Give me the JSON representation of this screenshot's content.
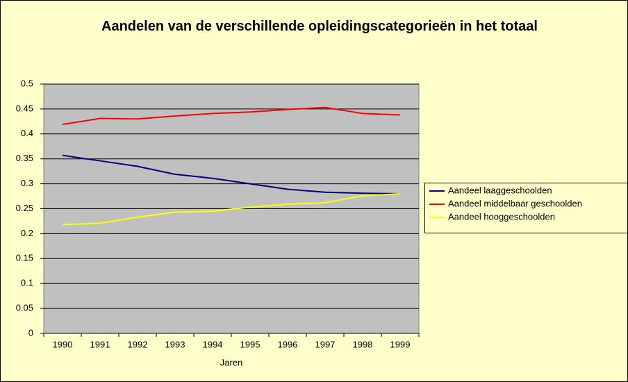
{
  "chart_data": {
    "type": "line",
    "title": "Aandelen van de verschillende opleidingscategorieën in het totaal",
    "x_label": "Jaren",
    "categories": [
      "1990",
      "1991",
      "1992",
      "1993",
      "1994",
      "1995",
      "1996",
      "1997",
      "1998",
      "1999"
    ],
    "series": [
      {
        "name": "Aandeel laaggeschoolden",
        "color": "#000080",
        "values": [
          0.357,
          0.346,
          0.335,
          0.319,
          0.311,
          0.3,
          0.289,
          0.283,
          0.281,
          0.28
        ]
      },
      {
        "name": "Aandeel middelbaar geschoolden",
        "color": "#ff0000",
        "values": [
          0.419,
          0.431,
          0.43,
          0.436,
          0.441,
          0.444,
          0.449,
          0.453,
          0.441,
          0.438
        ]
      },
      {
        "name": "Aandeel hooggeschoolden",
        "color": "#ffff00",
        "values": [
          0.218,
          0.221,
          0.233,
          0.243,
          0.245,
          0.253,
          0.259,
          0.262,
          0.276,
          0.28
        ]
      }
    ],
    "ylim": [
      0,
      0.5
    ],
    "yticks": [
      0,
      0.05,
      0.1,
      0.15,
      0.2,
      0.25,
      0.3,
      0.35,
      0.4,
      0.45,
      0.5
    ],
    "grid": true,
    "legend": "right"
  }
}
